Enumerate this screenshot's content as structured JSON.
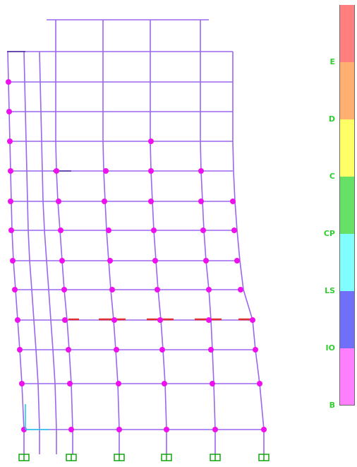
{
  "legend": {
    "labels": [
      "E",
      "D",
      "C",
      "CP",
      "LS",
      "IO",
      "B"
    ],
    "segments": [
      {
        "name": "top",
        "color": "#ff7f7f"
      },
      {
        "name": "E-D",
        "color": "#ffb070"
      },
      {
        "name": "D-C",
        "color": "#ffff66"
      },
      {
        "name": "C-CP",
        "color": "#66e066"
      },
      {
        "name": "CP-LS",
        "color": "#7ffdff"
      },
      {
        "name": "LS-IO",
        "color": "#6f6ff7"
      },
      {
        "name": "IO-B",
        "color": "#ff7fff"
      }
    ]
  },
  "colors": {
    "frame": "#9b66ee",
    "hinge": "#ee11ee",
    "hinge_red": "#e03030",
    "support": "#00a000",
    "axis": "#22ccee"
  }
}
